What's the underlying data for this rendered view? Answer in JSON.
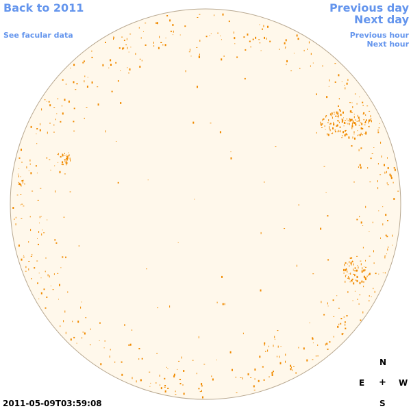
{
  "nav": {
    "back_label": "Back to 2011",
    "facular_label": "See facular data",
    "prev_day_label": "Previous day",
    "next_day_label": "Next day",
    "prev_hour_label": "Previous hour",
    "next_hour_label": "Next hour"
  },
  "compass": {
    "north": "N",
    "east": "E",
    "center": "+",
    "west": "W",
    "south": "S"
  },
  "timestamp": "2011-05-09T03:59:08",
  "colors": {
    "link": "#6495ED",
    "disk_fill": "#FFF8EB",
    "disk_edge": "#B8A890",
    "facula": "#F08A00"
  }
}
